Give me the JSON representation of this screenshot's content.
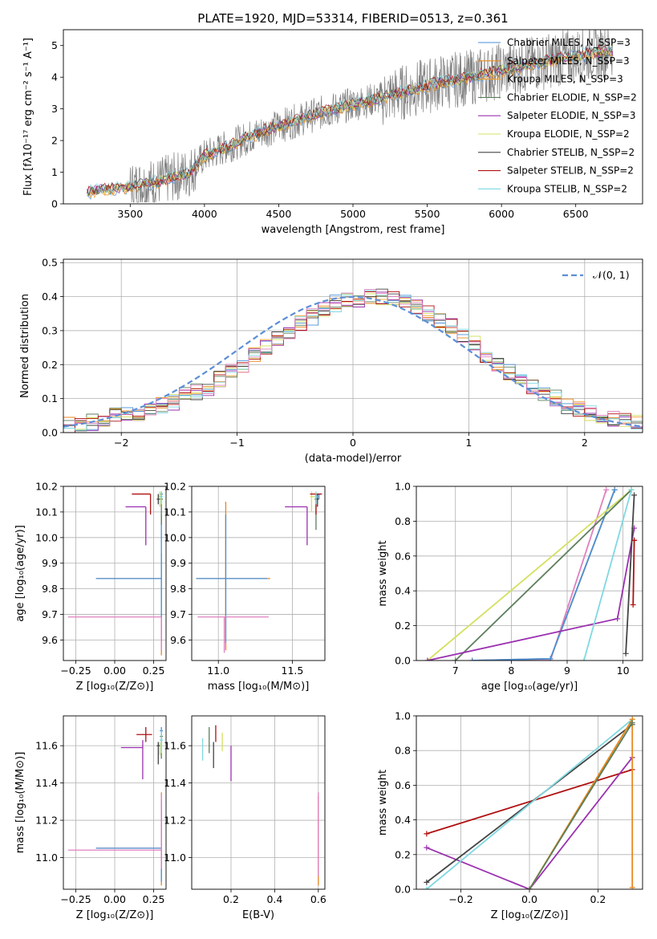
{
  "figure": {
    "title": "PLATE=1920, MJD=53314, FIBERID=0513, z=0.361"
  },
  "chart_data": [
    {
      "id": "spectrum",
      "type": "line",
      "title": "PLATE=1920, MJD=53314, FIBERID=0513, z=0.361",
      "xlabel": "wavelength [Angstrom, rest frame]",
      "ylabel": "Flux [fλ10⁻¹⁷ erg cm⁻² s⁻¹ A⁻¹]",
      "xlim": [
        3050,
        6950
      ],
      "ylim": [
        0,
        5.5
      ],
      "xticks": [
        3500,
        4000,
        4500,
        5000,
        5500,
        6000,
        6500
      ],
      "yticks": [
        0,
        1,
        2,
        3,
        4,
        5
      ],
      "legend": "top-right",
      "data_trend": {
        "x": [
          3210,
          3300,
          3500,
          3700,
          3900,
          4000,
          4200,
          4400,
          4600,
          4800,
          5000,
          5200,
          5400,
          5600,
          5800,
          6000,
          6200,
          6400,
          6600,
          6750
        ],
        "y": [
          0.35,
          0.45,
          0.55,
          0.7,
          1.0,
          1.5,
          1.9,
          2.3,
          2.6,
          2.9,
          3.15,
          3.35,
          3.6,
          3.85,
          4.0,
          4.2,
          4.4,
          4.6,
          4.75,
          4.85
        ]
      },
      "series": [
        {
          "name": "Chabrier MILES, N_SSP=3",
          "color": "#4a90d9"
        },
        {
          "name": "Salpeter MILES, N_SSP=3",
          "color": "#e8861e"
        },
        {
          "name": "Kroupa MILES, N_SSP=3",
          "color": "#f0a030"
        },
        {
          "name": "Chabrier ELODIE, N_SSP=2",
          "color": "#5c7e5c"
        },
        {
          "name": "Salpeter ELODIE, N_SSP=3",
          "color": "#9b30b0"
        },
        {
          "name": "Kroupa ELODIE, N_SSP=2",
          "color": "#d4e060"
        },
        {
          "name": "Chabrier STELIB, N_SSP=2",
          "color": "#444444"
        },
        {
          "name": "Salpeter STELIB, N_SSP=2",
          "color": "#b01010"
        },
        {
          "name": "Kroupa STELIB, N_SSP=2",
          "color": "#80d8e0"
        }
      ]
    },
    {
      "id": "residuals",
      "type": "bar",
      "xlabel": "(data-model)/error",
      "ylabel": "Normed distribution",
      "xlim": [
        -2.5,
        2.5
      ],
      "ylim": [
        0,
        0.51
      ],
      "xticks": [
        -2,
        -1,
        0,
        1,
        2
      ],
      "yticks": [
        0.0,
        0.1,
        0.2,
        0.3,
        0.4,
        0.5
      ],
      "legend": "top-right",
      "legend_label": "𝒩(0, 1)",
      "bin_width": 0.1,
      "gaussian_color": "#5b8fd6",
      "hist_colors": [
        "#4a90d9",
        "#e8861e",
        "#f0a030",
        "#5c7e5c",
        "#9b30b0",
        "#d4e060",
        "#444444",
        "#b01010",
        "#80d8e0",
        "#e080c0"
      ],
      "mean_histogram": [
        0.02,
        0.02,
        0.03,
        0.04,
        0.05,
        0.05,
        0.06,
        0.07,
        0.08,
        0.09,
        0.11,
        0.12,
        0.13,
        0.16,
        0.18,
        0.2,
        0.23,
        0.25,
        0.28,
        0.3,
        0.32,
        0.34,
        0.36,
        0.38,
        0.39,
        0.39,
        0.4,
        0.4,
        0.39,
        0.38,
        0.37,
        0.35,
        0.33,
        0.31,
        0.28,
        0.26,
        0.23,
        0.2,
        0.18,
        0.15,
        0.13,
        0.11,
        0.1,
        0.08,
        0.07,
        0.06,
        0.05,
        0.04,
        0.04,
        0.03
      ]
    },
    {
      "id": "age_vs_Z",
      "type": "scatter",
      "xlabel": "Z [log₁₀(Z/Z⊙)]",
      "ylabel": "age  [log₁₀(age/yr)]",
      "xlim": [
        -0.33,
        0.33
      ],
      "ylim": [
        9.52,
        10.2
      ],
      "xticks": [
        -0.25,
        0.0,
        0.25
      ],
      "xticklabels": [
        "−0.25",
        "0.00",
        "0.25"
      ],
      "yticks": [
        9.6,
        9.7,
        9.8,
        9.9,
        10.0,
        10.1,
        10.2
      ],
      "points": [
        {
          "x": 0.3,
          "y": 10.17,
          "xerr": [
            0.01,
            0.01
          ],
          "yerr": [
            0.02,
            0.0
          ],
          "color": "#4a90d9"
        },
        {
          "x": 0.3,
          "y": 9.84,
          "xerr": [
            0.42,
            0.0
          ],
          "yerr": [
            0.3,
            0.1
          ],
          "color": "#e8861e"
        },
        {
          "x": 0.3,
          "y": 9.84,
          "xerr": [
            0.42,
            0.0
          ],
          "yerr": [
            0.25,
            0.25
          ],
          "color": "#4a90d9"
        },
        {
          "x": 0.3,
          "y": 10.15,
          "xerr": [
            0.01,
            0.01
          ],
          "yerr": [
            0.1,
            0.03
          ],
          "color": "#5c7e5c"
        },
        {
          "x": 0.2,
          "y": 10.12,
          "xerr": [
            0.13,
            0.0
          ],
          "yerr": [
            0.15,
            0.0
          ],
          "color": "#9b30b0"
        },
        {
          "x": 0.29,
          "y": 10.16,
          "xerr": [
            0.01,
            0.01
          ],
          "yerr": [
            0.04,
            0.02
          ],
          "color": "#d4e060"
        },
        {
          "x": 0.28,
          "y": 10.15,
          "xerr": [
            0.01,
            0.01
          ],
          "yerr": [
            0.02,
            0.02
          ],
          "color": "#444444"
        },
        {
          "x": 0.23,
          "y": 10.17,
          "xerr": [
            0.12,
            0.0
          ],
          "yerr": [
            0.08,
            0.0
          ],
          "color": "#b01010"
        },
        {
          "x": 0.3,
          "y": 10.16,
          "xerr": [
            0.01,
            0.01
          ],
          "yerr": [
            0.03,
            0.02
          ],
          "color": "#80d8e0"
        },
        {
          "x": 0.3,
          "y": 9.69,
          "xerr": [
            0.6,
            0.0
          ],
          "yerr": [
            0.13,
            0.0
          ],
          "color": "#e080c0"
        }
      ]
    },
    {
      "id": "age_vs_mass",
      "type": "scatter",
      "xlabel": "mass [log₁₀(M/M⊙)]",
      "xlim": [
        10.82,
        11.72
      ],
      "ylim": [
        9.52,
        10.2
      ],
      "xticks": [
        11.0,
        11.5
      ],
      "xticklabels": [
        "11.0",
        "11.5"
      ],
      "yticks": [
        9.6,
        9.7,
        9.8,
        9.9,
        10.0,
        10.1,
        10.2
      ],
      "points": [
        {
          "x": 11.68,
          "y": 10.17,
          "xerr": [
            0.01,
            0.01
          ],
          "yerr": [
            0.02,
            0.0
          ],
          "color": "#4a90d9"
        },
        {
          "x": 11.05,
          "y": 9.84,
          "xerr": [
            0.2,
            0.3
          ],
          "yerr": [
            0.28,
            0.3
          ],
          "color": "#e8861e"
        },
        {
          "x": 11.05,
          "y": 9.84,
          "xerr": [
            0.2,
            0.28
          ],
          "yerr": [
            0.25,
            0.25
          ],
          "color": "#4a90d9"
        },
        {
          "x": 11.66,
          "y": 10.15,
          "xerr": [
            0.01,
            0.01
          ],
          "yerr": [
            0.12,
            0.02
          ],
          "color": "#5c7e5c"
        },
        {
          "x": 11.6,
          "y": 10.12,
          "xerr": [
            0.15,
            0.0
          ],
          "yerr": [
            0.15,
            0.0
          ],
          "color": "#9b30b0"
        },
        {
          "x": 11.63,
          "y": 10.16,
          "xerr": [
            0.01,
            0.02
          ],
          "yerr": [
            0.06,
            0.02
          ],
          "color": "#d4e060"
        },
        {
          "x": 11.67,
          "y": 10.15,
          "xerr": [
            0.01,
            0.01
          ],
          "yerr": [
            0.03,
            0.02
          ],
          "color": "#444444"
        },
        {
          "x": 11.66,
          "y": 10.17,
          "xerr": [
            0.04,
            0.04
          ],
          "yerr": [
            0.08,
            0.0
          ],
          "color": "#b01010"
        },
        {
          "x": 11.66,
          "y": 10.16,
          "xerr": [
            0.01,
            0.01
          ],
          "yerr": [
            0.03,
            0.02
          ],
          "color": "#80d8e0"
        },
        {
          "x": 11.04,
          "y": 9.69,
          "xerr": [
            0.18,
            0.3
          ],
          "yerr": [
            0.14,
            0.0
          ],
          "color": "#e080c0"
        }
      ]
    },
    {
      "id": "cumulative_age",
      "type": "line",
      "xlabel": "age  [log₁₀(age/yr)]",
      "ylabel": "mass weight",
      "xlim": [
        6.3,
        10.35
      ],
      "ylim": [
        0,
        1
      ],
      "xticks": [
        7,
        8,
        9,
        10
      ],
      "yticks": [
        0.0,
        0.2,
        0.4,
        0.6,
        0.8,
        1.0
      ],
      "series": [
        {
          "color": "#e080c0",
          "x": [
            7.3,
            8.7,
            9.7
          ],
          "y": [
            0.0,
            0.0,
            0.98
          ]
        },
        {
          "color": "#e8861e",
          "x": [
            7.3,
            8.7,
            9.85
          ],
          "y": [
            0.0,
            0.01,
            0.98
          ]
        },
        {
          "color": "#4a90d9",
          "x": [
            7.3,
            8.7,
            9.85
          ],
          "y": [
            0.0,
            0.01,
            0.98
          ]
        },
        {
          "color": "#d4e060",
          "x": [
            6.5,
            10.15
          ],
          "y": [
            0.0,
            0.98
          ]
        },
        {
          "color": "#5c7e5c",
          "x": [
            7.0,
            10.15
          ],
          "y": [
            0.0,
            0.98
          ]
        },
        {
          "color": "#9b30b0",
          "x": [
            6.5,
            9.9,
            10.2
          ],
          "y": [
            0.0,
            0.24,
            0.76
          ]
        },
        {
          "color": "#80d8e0",
          "x": [
            9.3,
            10.15
          ],
          "y": [
            0.0,
            0.98
          ]
        },
        {
          "color": "#444444",
          "x": [
            10.05,
            10.2
          ],
          "y": [
            0.04,
            0.95
          ]
        },
        {
          "color": "#b01010",
          "x": [
            10.18,
            10.2,
            10.2
          ],
          "y": [
            0.32,
            0.69,
            0.69
          ]
        }
      ]
    },
    {
      "id": "mass_vs_Z",
      "type": "scatter",
      "xlabel": "Z [log₁₀(Z/Z⊙)]",
      "ylabel": "mass [log₁₀(M/M⊙)]",
      "xlim": [
        -0.33,
        0.33
      ],
      "ylim": [
        10.83,
        11.76
      ],
      "xticks": [
        -0.25,
        0.0,
        0.25
      ],
      "xticklabels": [
        "−0.25",
        "0.00",
        "0.25"
      ],
      "yticks": [
        11.0,
        11.2,
        11.4,
        11.6
      ],
      "points": [
        {
          "x": 0.3,
          "y": 11.68,
          "xerr": [
            0.01,
            0.01
          ],
          "yerr": [
            0.03,
            0.02
          ],
          "color": "#4a90d9"
        },
        {
          "x": 0.3,
          "y": 11.05,
          "xerr": [
            0.42,
            0.0
          ],
          "yerr": [
            0.2,
            0.3
          ],
          "color": "#e8861e"
        },
        {
          "x": 0.3,
          "y": 11.05,
          "xerr": [
            0.42,
            0.0
          ],
          "yerr": [
            0.18,
            0.25
          ],
          "color": "#4a90d9"
        },
        {
          "x": 0.3,
          "y": 11.65,
          "xerr": [
            0.01,
            0.01
          ],
          "yerr": [
            0.12,
            0.03
          ],
          "color": "#5c7e5c"
        },
        {
          "x": 0.18,
          "y": 11.59,
          "xerr": [
            0.14,
            0.0
          ],
          "yerr": [
            0.17,
            0.04
          ],
          "color": "#9b30b0"
        },
        {
          "x": 0.29,
          "y": 11.6,
          "xerr": [
            0.01,
            0.01
          ],
          "yerr": [
            0.05,
            0.02
          ],
          "color": "#d4e060"
        },
        {
          "x": 0.28,
          "y": 11.6,
          "xerr": [
            0.01,
            0.01
          ],
          "yerr": [
            0.1,
            0.02
          ],
          "color": "#444444"
        },
        {
          "x": 0.2,
          "y": 11.66,
          "xerr": [
            0.06,
            0.04
          ],
          "yerr": [
            0.04,
            0.04
          ],
          "color": "#b01010"
        },
        {
          "x": 0.3,
          "y": 11.63,
          "xerr": [
            0.01,
            0.01
          ],
          "yerr": [
            0.07,
            0.05
          ],
          "color": "#80d8e0"
        },
        {
          "x": 0.3,
          "y": 11.04,
          "xerr": [
            0.6,
            0.0
          ],
          "yerr": [
            0.1,
            0.3
          ],
          "color": "#e080c0"
        }
      ]
    },
    {
      "id": "mass_vs_ebv",
      "type": "scatter",
      "xlabel": "E(B-V)",
      "xlim": [
        0.02,
        0.63
      ],
      "ylim": [
        10.83,
        11.76
      ],
      "xticks": [
        0.2,
        0.4,
        0.6
      ],
      "xticklabels": [
        "0.2",
        "0.4",
        "0.6"
      ],
      "yticks": [
        11.0,
        11.2,
        11.4,
        11.6
      ],
      "points": [
        {
          "x": 0.07,
          "y": 11.58,
          "xerr": [
            0,
            0
          ],
          "yerr": [
            0.06,
            0.06
          ],
          "color": "#80d8e0"
        },
        {
          "x": 0.1,
          "y": 11.63,
          "xerr": [
            0,
            0
          ],
          "yerr": [
            0.07,
            0.07
          ],
          "color": "#5c7e5c"
        },
        {
          "x": 0.12,
          "y": 11.57,
          "xerr": [
            0,
            0
          ],
          "yerr": [
            0.09,
            0.05
          ],
          "color": "#444444"
        },
        {
          "x": 0.13,
          "y": 11.66,
          "xerr": [
            0,
            0
          ],
          "yerr": [
            0.04,
            0.05
          ],
          "color": "#b01010"
        },
        {
          "x": 0.16,
          "y": 11.62,
          "xerr": [
            0,
            0
          ],
          "yerr": [
            0.05,
            0.05
          ],
          "color": "#d4e060"
        },
        {
          "x": 0.2,
          "y": 11.53,
          "xerr": [
            0,
            0
          ],
          "yerr": [
            0.12,
            0.07
          ],
          "color": "#9b30b0"
        },
        {
          "x": 0.6,
          "y": 11.05,
          "xerr": [
            0,
            0
          ],
          "yerr": [
            0.2,
            0.28
          ],
          "color": "#e8861e"
        },
        {
          "x": 0.6,
          "y": 11.1,
          "xerr": [
            0,
            0
          ],
          "yerr": [
            0.2,
            0.25
          ],
          "color": "#e080c0"
        }
      ]
    },
    {
      "id": "cumulative_Z",
      "type": "line",
      "xlabel": "Z [log₁₀(Z/Z⊙)]",
      "ylabel": "mass weight",
      "xlim": [
        -0.33,
        0.33
      ],
      "ylim": [
        0,
        1
      ],
      "xticks": [
        -0.2,
        0.0,
        0.2
      ],
      "xticklabels": [
        "−0.2",
        "0.0",
        "0.2"
      ],
      "yticks": [
        0.0,
        0.2,
        0.4,
        0.6,
        0.8,
        1.0
      ],
      "series": [
        {
          "color": "#b01010",
          "x": [
            -0.3,
            0.3
          ],
          "y": [
            0.32,
            0.69
          ]
        },
        {
          "color": "#9b30b0",
          "x": [
            -0.3,
            0.0,
            0.3
          ],
          "y": [
            0.24,
            0.0,
            0.76
          ]
        },
        {
          "color": "#444444",
          "x": [
            -0.3,
            0.3
          ],
          "y": [
            0.04,
            0.95
          ]
        },
        {
          "color": "#80d8e0",
          "x": [
            -0.3,
            0.3
          ],
          "y": [
            0.0,
            0.98
          ]
        },
        {
          "color": "#d4e060",
          "x": [
            0.0,
            0.3
          ],
          "y": [
            0.0,
            0.98
          ]
        },
        {
          "color": "#e8861e",
          "x": [
            0.0,
            0.3,
            0.3
          ],
          "y": [
            0.0,
            0.98,
            0.01
          ]
        },
        {
          "color": "#5c7e5c",
          "x": [
            0.0,
            0.3
          ],
          "y": [
            0.0,
            0.96
          ]
        }
      ]
    }
  ]
}
